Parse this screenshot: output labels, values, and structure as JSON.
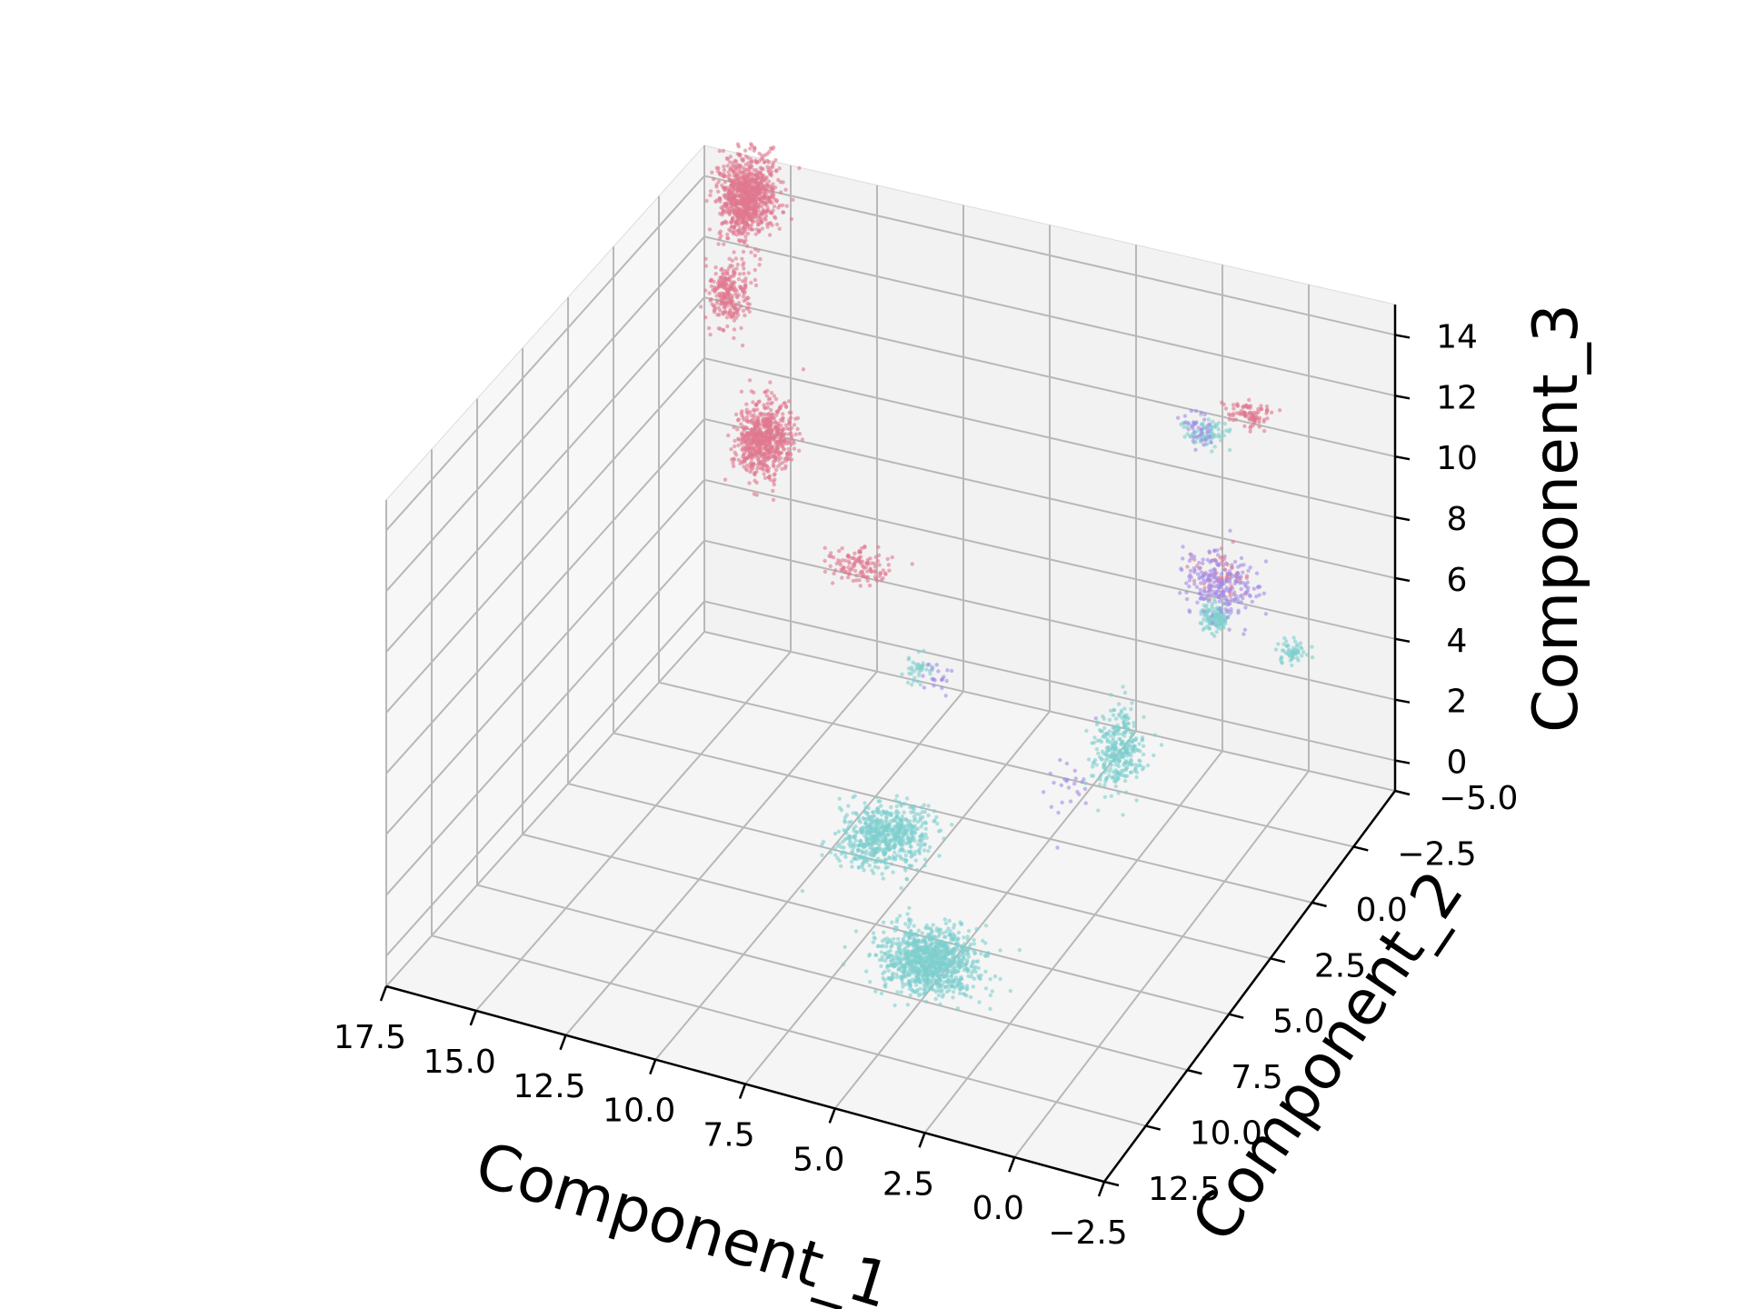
{
  "chart_data": {
    "type": "scatter",
    "projection": "3d",
    "title": "",
    "xlabel": "Component_1",
    "ylabel": "Component_2",
    "zlabel": "Component_3",
    "x_axis_direction": "decreasing",
    "y_axis_direction": "decreasing",
    "xlim": [
      -2.5,
      17.5
    ],
    "ylim": [
      -5.0,
      12.5
    ],
    "zlim": [
      -1,
      15
    ],
    "x_ticks": [
      17.5,
      15.0,
      12.5,
      10.0,
      7.5,
      5.0,
      2.5,
      0.0,
      -2.5
    ],
    "x_tick_labels": [
      "17.5",
      "15.0",
      "12.5",
      "10.0",
      "7.5",
      "5.0",
      "2.5",
      "0.0",
      "−2.5"
    ],
    "y_ticks": [
      -5.0,
      -2.5,
      0.0,
      2.5,
      5.0,
      7.5,
      10.0,
      12.5
    ],
    "y_tick_labels": [
      "−5.0",
      "−2.5",
      "0.0",
      "2.5",
      "5.0",
      "7.5",
      "10.0",
      "12.5"
    ],
    "z_ticks": [
      0,
      2,
      4,
      6,
      8,
      10,
      12,
      14
    ],
    "z_tick_labels": [
      "0",
      "2",
      "4",
      "6",
      "8",
      "10",
      "12",
      "14"
    ],
    "grid": true,
    "legend": "none",
    "series": [
      {
        "color": "#e0788f",
        "clusters": [
          {
            "x": 16.0,
            "y": -4.5,
            "z": 14.0,
            "spread": [
              0.7,
              0.8,
              1.2
            ],
            "n": 900
          },
          {
            "x": 16.0,
            "y": -3.5,
            "z": 11.5,
            "spread": [
              0.5,
              0.6,
              1.0
            ],
            "n": 250
          },
          {
            "x": 15.0,
            "y": -3.5,
            "z": 7.0,
            "spread": [
              0.7,
              0.8,
              1.1
            ],
            "n": 650
          },
          {
            "x": 12.0,
            "y": -3.0,
            "z": 4.0,
            "spread": [
              1.0,
              0.5,
              0.4
            ],
            "n": 120
          },
          {
            "x": 1.5,
            "y": -4.5,
            "z": 10.7,
            "spread": [
              0.6,
              0.3,
              0.4
            ],
            "n": 90
          },
          {
            "x": 1.5,
            "y": -3.0,
            "z": 6.5,
            "spread": [
              0.7,
              0.4,
              0.6
            ],
            "n": 60
          }
        ]
      },
      {
        "color": "#7fcfce",
        "clusters": [
          {
            "x": 7.5,
            "y": 4.5,
            "z": 1.5,
            "spread": [
              1.1,
              1.2,
              0.6
            ],
            "n": 650
          },
          {
            "x": 4.5,
            "y": 8.0,
            "z": 0.8,
            "spread": [
              1.3,
              1.0,
              0.7
            ],
            "n": 1050
          },
          {
            "x": 3.0,
            "y": 0.0,
            "z": 2.5,
            "spread": [
              0.6,
              0.8,
              1.2
            ],
            "n": 320
          },
          {
            "x": 9.5,
            "y": -1.5,
            "z": 2.3,
            "spread": [
              0.4,
              0.4,
              0.4
            ],
            "n": 40
          },
          {
            "x": 2.5,
            "y": -4.0,
            "z": 10.2,
            "spread": [
              0.6,
              0.3,
              0.4
            ],
            "n": 80
          },
          {
            "x": 1.5,
            "y": -2.5,
            "z": 5.5,
            "spread": [
              0.4,
              0.3,
              0.4
            ],
            "n": 120
          },
          {
            "x": -0.5,
            "y": -3.0,
            "z": 4.5,
            "spread": [
              0.4,
              0.3,
              0.3
            ],
            "n": 60
          }
        ]
      },
      {
        "color": "#a48ae6",
        "clusters": [
          {
            "x": 1.5,
            "y": -3.0,
            "z": 6.2,
            "spread": [
              1.0,
              0.6,
              1.0
            ],
            "n": 220
          },
          {
            "x": 3.0,
            "y": -4.5,
            "z": 9.8,
            "spread": [
              0.6,
              0.4,
              0.6
            ],
            "n": 40
          },
          {
            "x": 9.0,
            "y": -1.5,
            "z": 2.2,
            "spread": [
              0.5,
              0.5,
              0.4
            ],
            "n": 20
          },
          {
            "x": 4.0,
            "y": 1.0,
            "z": 1.8,
            "spread": [
              0.7,
              1.0,
              0.9
            ],
            "n": 25
          }
        ]
      }
    ]
  }
}
